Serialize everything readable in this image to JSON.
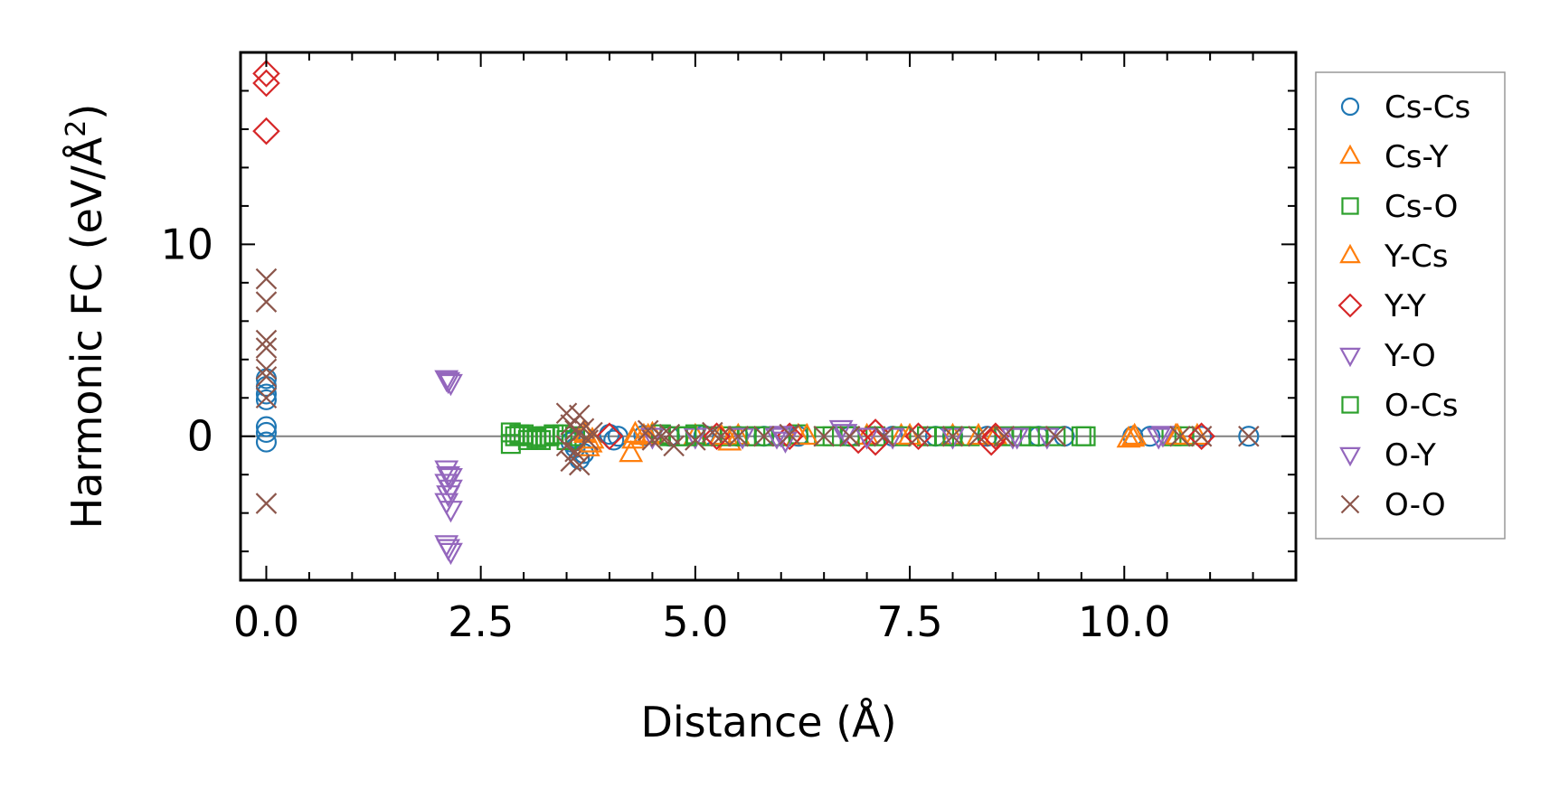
{
  "chart_data": {
    "type": "scatter",
    "title": "",
    "xlabel": "Distance (Å)",
    "ylabel_text": "Harmonic FC (eV/Å",
    "ylabel_sup": "2",
    "ylabel_close": ")",
    "xlim": [
      -0.3,
      12.0
    ],
    "ylim": [
      -7.5,
      20.0
    ],
    "x_ticks": [
      0.0,
      2.5,
      5.0,
      7.5,
      10.0
    ],
    "x_tick_labels": [
      "0.0",
      "2.5",
      "5.0",
      "7.5",
      "10.0"
    ],
    "y_ticks": [
      0,
      10
    ],
    "y_tick_labels": [
      "0",
      "10"
    ],
    "zero_line": true,
    "legend_position": "outside-right",
    "series": [
      {
        "name": "Cs-Cs",
        "marker": "circle",
        "color": "#1f77b4",
        "points": [
          [
            0,
            3.0
          ],
          [
            0,
            2.6
          ],
          [
            0,
            2.2
          ],
          [
            0,
            1.9
          ],
          [
            0,
            0.5
          ],
          [
            0,
            0.2
          ],
          [
            0,
            -0.3
          ],
          [
            3.55,
            -0.3
          ],
          [
            3.6,
            -0.6
          ],
          [
            3.65,
            -1.2
          ],
          [
            3.7,
            -0.9
          ],
          [
            3.6,
            -0.1
          ],
          [
            4.0,
            0.1
          ],
          [
            4.05,
            -0.2
          ],
          [
            4.1,
            0.0
          ],
          [
            4.4,
            0.05
          ],
          [
            4.7,
            0.0
          ],
          [
            5.1,
            0.05
          ],
          [
            5.5,
            0.0
          ],
          [
            5.8,
            0.0
          ],
          [
            6.2,
            0.0
          ],
          [
            6.8,
            0.0
          ],
          [
            7.3,
            0.0
          ],
          [
            7.8,
            0.0
          ],
          [
            8.0,
            0.0
          ],
          [
            8.4,
            0.0
          ],
          [
            9.0,
            0.0
          ],
          [
            9.3,
            0.0
          ],
          [
            10.1,
            0.0
          ],
          [
            10.3,
            0.0
          ],
          [
            10.9,
            0.0
          ],
          [
            11.45,
            0.0
          ]
        ]
      },
      {
        "name": "Cs-Y",
        "marker": "triangle-up",
        "color": "#ff7f0e",
        "points": [
          [
            3.7,
            0.2
          ],
          [
            3.75,
            -0.6
          ],
          [
            3.8,
            -0.2
          ],
          [
            4.25,
            -0.9
          ],
          [
            4.3,
            0.1
          ],
          [
            4.4,
            0.0
          ],
          [
            4.5,
            0.1
          ],
          [
            5.0,
            0.0
          ],
          [
            5.4,
            -0.3
          ],
          [
            5.5,
            0.0
          ],
          [
            6.2,
            0.0
          ],
          [
            7.0,
            0.0
          ],
          [
            7.4,
            0.0
          ],
          [
            8.0,
            0.0
          ],
          [
            8.5,
            0.0
          ],
          [
            10.05,
            -0.15
          ],
          [
            10.1,
            -0.1
          ],
          [
            10.6,
            0.0
          ],
          [
            10.85,
            0.0
          ]
        ]
      },
      {
        "name": "Cs-O",
        "marker": "square",
        "color": "#2ca02c",
        "points": [
          [
            2.85,
            0.2
          ],
          [
            2.85,
            -0.4
          ],
          [
            2.9,
            0.0
          ],
          [
            3.0,
            0.1
          ],
          [
            3.05,
            -0.2
          ],
          [
            3.1,
            0.0
          ],
          [
            3.15,
            -0.1
          ],
          [
            3.25,
            0.0
          ],
          [
            3.3,
            0.0
          ],
          [
            3.45,
            0.1
          ],
          [
            3.5,
            -0.2
          ],
          [
            3.6,
            0.0
          ],
          [
            4.6,
            0.1
          ],
          [
            4.7,
            0.0
          ],
          [
            4.8,
            0.0
          ],
          [
            5.0,
            0.1
          ],
          [
            5.2,
            0.0
          ],
          [
            5.4,
            0.0
          ],
          [
            5.6,
            0.0
          ],
          [
            5.8,
            0.0
          ],
          [
            6.0,
            0.0
          ],
          [
            6.2,
            0.1
          ],
          [
            6.5,
            0.0
          ],
          [
            6.8,
            0.0
          ],
          [
            7.1,
            0.0
          ],
          [
            7.4,
            0.0
          ],
          [
            7.7,
            0.0
          ],
          [
            8.0,
            0.0
          ],
          [
            8.2,
            0.0
          ],
          [
            8.6,
            0.0
          ],
          [
            8.8,
            0.0
          ],
          [
            9.0,
            0.0
          ],
          [
            9.2,
            0.0
          ],
          [
            9.5,
            0.0
          ],
          [
            10.55,
            0.0
          ],
          [
            10.7,
            0.0
          ]
        ]
      },
      {
        "name": "Y-Cs",
        "marker": "triangle-up",
        "color": "#ff7f0e",
        "points": [
          [
            3.72,
            0.1
          ],
          [
            3.78,
            -0.4
          ],
          [
            4.28,
            -0.2
          ],
          [
            4.45,
            0.0
          ],
          [
            5.3,
            0.0
          ],
          [
            6.3,
            0.0
          ],
          [
            7.5,
            0.0
          ],
          [
            8.3,
            0.0
          ],
          [
            10.12,
            0.0
          ],
          [
            10.62,
            0.0
          ]
        ]
      },
      {
        "name": "Y-Y",
        "marker": "diamond",
        "color": "#d62728",
        "points": [
          [
            0,
            18.9
          ],
          [
            0,
            18.4
          ],
          [
            0,
            15.9
          ],
          [
            4.0,
            0.0
          ],
          [
            5.25,
            0.0
          ],
          [
            6.1,
            0.0
          ],
          [
            6.9,
            -0.2
          ],
          [
            7.1,
            0.2
          ],
          [
            7.1,
            -0.3
          ],
          [
            7.6,
            0.0
          ],
          [
            8.45,
            -0.3
          ],
          [
            8.5,
            0.0
          ],
          [
            10.9,
            0.0
          ]
        ]
      },
      {
        "name": "Y-O",
        "marker": "triangle-down",
        "color": "#9467bd",
        "points": [
          [
            2.1,
            3.0
          ],
          [
            2.15,
            2.8
          ],
          [
            2.1,
            -1.7
          ],
          [
            2.15,
            -2.1
          ],
          [
            2.1,
            -2.4
          ],
          [
            2.15,
            -2.7
          ],
          [
            2.1,
            -3.4
          ],
          [
            2.15,
            -3.8
          ],
          [
            2.1,
            -5.6
          ],
          [
            2.15,
            -6.0
          ],
          [
            4.5,
            0.0
          ],
          [
            5.0,
            0.0
          ],
          [
            5.55,
            0.0
          ],
          [
            6.0,
            0.1
          ],
          [
            6.05,
            -0.2
          ],
          [
            6.7,
            0.4
          ],
          [
            7.0,
            0.0
          ],
          [
            7.3,
            0.0
          ],
          [
            8.0,
            0.0
          ],
          [
            8.7,
            0.0
          ],
          [
            9.1,
            0.0
          ],
          [
            10.45,
            0.1
          ]
        ]
      },
      {
        "name": "O-Cs",
        "marker": "square",
        "color": "#2ca02c",
        "points": [
          [
            2.95,
            0.1
          ],
          [
            3.2,
            -0.2
          ],
          [
            3.35,
            0.1
          ],
          [
            4.9,
            0.0
          ],
          [
            5.7,
            0.0
          ],
          [
            6.6,
            0.0
          ],
          [
            7.9,
            0.0
          ],
          [
            8.9,
            0.0
          ],
          [
            9.55,
            0.0
          ]
        ]
      },
      {
        "name": "O-Y",
        "marker": "triangle-down",
        "color": "#9467bd",
        "points": [
          [
            2.12,
            2.9
          ],
          [
            2.12,
            -2.0
          ],
          [
            2.12,
            -3.0
          ],
          [
            2.12,
            -5.8
          ],
          [
            5.95,
            0.0
          ],
          [
            6.75,
            0.2
          ],
          [
            8.75,
            0.0
          ],
          [
            10.4,
            0.0
          ]
        ]
      },
      {
        "name": "O-O",
        "marker": "x",
        "color": "#8c564b",
        "points": [
          [
            0,
            8.2
          ],
          [
            0,
            7.0
          ],
          [
            0,
            5.0
          ],
          [
            0,
            4.6
          ],
          [
            0,
            3.5
          ],
          [
            0,
            3.1
          ],
          [
            0,
            2.0
          ],
          [
            0,
            -3.5
          ],
          [
            3.5,
            1.2
          ],
          [
            3.5,
            -0.5
          ],
          [
            3.55,
            0.6
          ],
          [
            3.55,
            -1.3
          ],
          [
            3.6,
            0.3
          ],
          [
            3.6,
            -0.8
          ],
          [
            3.65,
            1.1
          ],
          [
            3.65,
            -1.5
          ],
          [
            3.7,
            0.4
          ],
          [
            3.75,
            -0.2
          ],
          [
            3.8,
            0.2
          ],
          [
            4.45,
            0.3
          ],
          [
            4.5,
            -0.2
          ],
          [
            4.6,
            0.0
          ],
          [
            4.7,
            0.1
          ],
          [
            4.75,
            -0.5
          ],
          [
            5.0,
            -0.2
          ],
          [
            5.2,
            0.2
          ],
          [
            5.3,
            0.0
          ],
          [
            5.5,
            0.0
          ],
          [
            5.8,
            0.0
          ],
          [
            6.1,
            0.1
          ],
          [
            6.5,
            0.0
          ],
          [
            6.8,
            0.0
          ],
          [
            7.2,
            0.0
          ],
          [
            7.6,
            0.0
          ],
          [
            8.0,
            0.0
          ],
          [
            8.3,
            0.0
          ],
          [
            8.6,
            0.0
          ],
          [
            9.2,
            0.0
          ],
          [
            10.65,
            0.0
          ],
          [
            10.9,
            0.0
          ],
          [
            11.45,
            0.0
          ]
        ]
      }
    ]
  }
}
